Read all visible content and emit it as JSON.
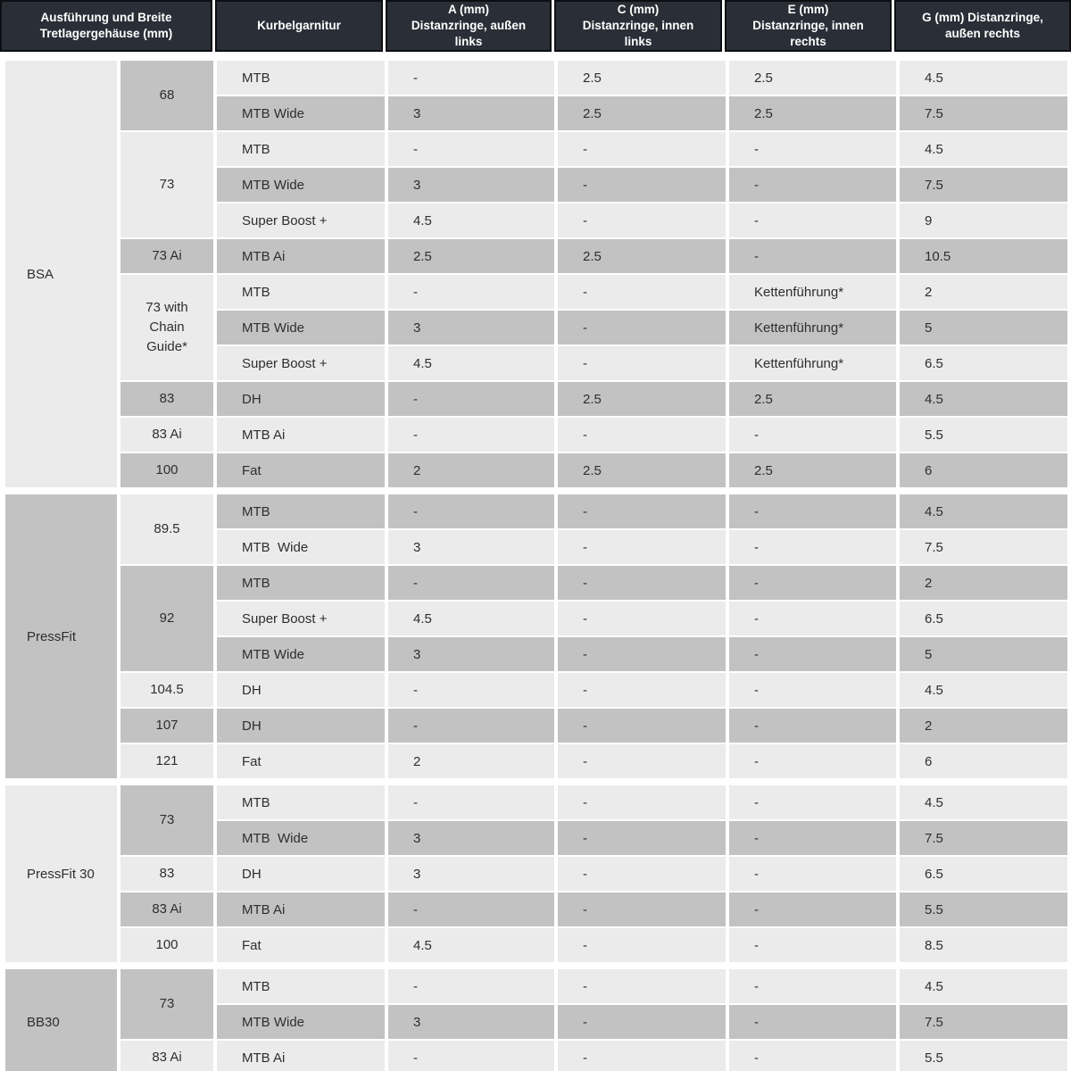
{
  "header": {
    "cols": [
      "Ausführung und Breite\nTretlagergehäuse (mm)",
      "Kurbelgarnitur",
      "A (mm)\nDistanzringe, außen\nlinks",
      "C (mm)\nDistanzringe, innen\nlinks",
      "E (mm)\nDistanzringe, innen\nrechts",
      "G (mm) Distanzringe,\naußen rechts"
    ]
  },
  "colors": {
    "header_bg": "#2a2e36",
    "header_border": "#0c0e12",
    "row_light": "#ebebeb",
    "row_dark": "#c2c2c2",
    "text": "#2e2e2e"
  },
  "sections": [
    {
      "group": "BSA",
      "group_shade": "light",
      "widths": [
        {
          "label": "68",
          "shade": "dark",
          "rows": [
            {
              "shade": "light",
              "k": "MTB",
              "a": "-",
              "c": "2.5",
              "e": "2.5",
              "g": "4.5"
            },
            {
              "shade": "dark",
              "k": "MTB Wide",
              "a": "3",
              "c": "2.5",
              "e": "2.5",
              "g": "7.5"
            }
          ]
        },
        {
          "label": "73",
          "shade": "light",
          "rows": [
            {
              "shade": "light",
              "k": "MTB",
              "a": "-",
              "c": "-",
              "e": "-",
              "g": "4.5"
            },
            {
              "shade": "dark",
              "k": "MTB Wide",
              "a": "3",
              "c": "-",
              "e": "-",
              "g": "7.5"
            },
            {
              "shade": "light",
              "k": "Super Boost +",
              "a": "4.5",
              "c": "-",
              "e": "-",
              "g": "9"
            }
          ]
        },
        {
          "label": "73 Ai",
          "shade": "dark",
          "rows": [
            {
              "shade": "dark",
              "k": "MTB Ai",
              "a": "2.5",
              "c": "2.5",
              "e": "-",
              "g": "10.5"
            }
          ]
        },
        {
          "label": "73 with Chain Guide*",
          "shade": "light",
          "rows": [
            {
              "shade": "light",
              "k": "MTB",
              "a": "-",
              "c": "-",
              "e": "Kettenführung*",
              "g": "2"
            },
            {
              "shade": "dark",
              "k": "MTB Wide",
              "a": "3",
              "c": "-",
              "e": "Kettenführung*",
              "g": "5"
            },
            {
              "shade": "light",
              "k": "Super Boost +",
              "a": "4.5",
              "c": "-",
              "e": "Kettenführung*",
              "g": "6.5"
            }
          ]
        },
        {
          "label": "83",
          "shade": "dark",
          "rows": [
            {
              "shade": "dark",
              "k": "DH",
              "a": "-",
              "c": "2.5",
              "e": "2.5",
              "g": "4.5"
            }
          ]
        },
        {
          "label": "83 Ai",
          "shade": "light",
          "rows": [
            {
              "shade": "light",
              "k": "MTB Ai",
              "a": "-",
              "c": "-",
              "e": "-",
              "g": "5.5"
            }
          ]
        },
        {
          "label": "100",
          "shade": "dark",
          "rows": [
            {
              "shade": "dark",
              "k": "Fat",
              "a": "2",
              "c": "2.5",
              "e": "2.5",
              "g": "6"
            }
          ]
        }
      ]
    },
    {
      "group": "PressFit",
      "group_shade": "dark",
      "widths": [
        {
          "label": "89.5",
          "shade": "light",
          "rows": [
            {
              "shade": "dark",
              "k": "MTB",
              "a": "-",
              "c": "-",
              "e": "-",
              "g": "4.5"
            },
            {
              "shade": "light",
              "k": "MTB  Wide",
              "a": "3",
              "c": "-",
              "e": "-",
              "g": "7.5"
            }
          ]
        },
        {
          "label": "92",
          "shade": "dark",
          "rows": [
            {
              "shade": "dark",
              "k": "MTB",
              "a": "-",
              "c": "-",
              "e": "-",
              "g": "2"
            },
            {
              "shade": "light",
              "k": "Super Boost +",
              "a": "4.5",
              "c": "-",
              "e": "-",
              "g": "6.5"
            },
            {
              "shade": "dark",
              "k": "MTB Wide",
              "a": "3",
              "c": "-",
              "e": "-",
              "g": "5"
            }
          ]
        },
        {
          "label": "104.5",
          "shade": "light",
          "rows": [
            {
              "shade": "light",
              "k": "DH",
              "a": "-",
              "c": "-",
              "e": "-",
              "g": "4.5"
            }
          ]
        },
        {
          "label": "107",
          "shade": "dark",
          "rows": [
            {
              "shade": "dark",
              "k": "DH",
              "a": "-",
              "c": "-",
              "e": "-",
              "g": "2"
            }
          ]
        },
        {
          "label": "121",
          "shade": "light",
          "rows": [
            {
              "shade": "light",
              "k": "Fat",
              "a": "2",
              "c": "-",
              "e": "-",
              "g": "6"
            }
          ]
        }
      ]
    },
    {
      "group": "PressFit 30",
      "group_shade": "light",
      "widths": [
        {
          "label": "73",
          "shade": "dark",
          "rows": [
            {
              "shade": "light",
              "k": "MTB",
              "a": "-",
              "c": "-",
              "e": "-",
              "g": "4.5"
            },
            {
              "shade": "dark",
              "k": "MTB  Wide",
              "a": "3",
              "c": "-",
              "e": "-",
              "g": "7.5"
            }
          ]
        },
        {
          "label": "83",
          "shade": "light",
          "rows": [
            {
              "shade": "light",
              "k": "DH",
              "a": "3",
              "c": "-",
              "e": "-",
              "g": "6.5"
            }
          ]
        },
        {
          "label": "83 Ai",
          "shade": "dark",
          "rows": [
            {
              "shade": "dark",
              "k": "MTB Ai",
              "a": "-",
              "c": "-",
              "e": "-",
              "g": "5.5"
            }
          ]
        },
        {
          "label": "100",
          "shade": "light",
          "rows": [
            {
              "shade": "light",
              "k": "Fat",
              "a": "4.5",
              "c": "-",
              "e": "-",
              "g": "8.5"
            }
          ]
        }
      ]
    },
    {
      "group": "BB30",
      "group_shade": "dark",
      "widths": [
        {
          "label": "73",
          "shade": "dark",
          "rows": [
            {
              "shade": "light",
              "k": "MTB",
              "a": "-",
              "c": "-",
              "e": "-",
              "g": "4.5"
            },
            {
              "shade": "dark",
              "k": "MTB Wide",
              "a": "3",
              "c": "-",
              "e": "-",
              "g": "7.5"
            }
          ]
        },
        {
          "label": "83 Ai",
          "shade": "light",
          "rows": [
            {
              "shade": "light",
              "k": "MTB Ai",
              "a": "-",
              "c": "-",
              "e": "-",
              "g": "5.5"
            }
          ]
        }
      ]
    }
  ]
}
